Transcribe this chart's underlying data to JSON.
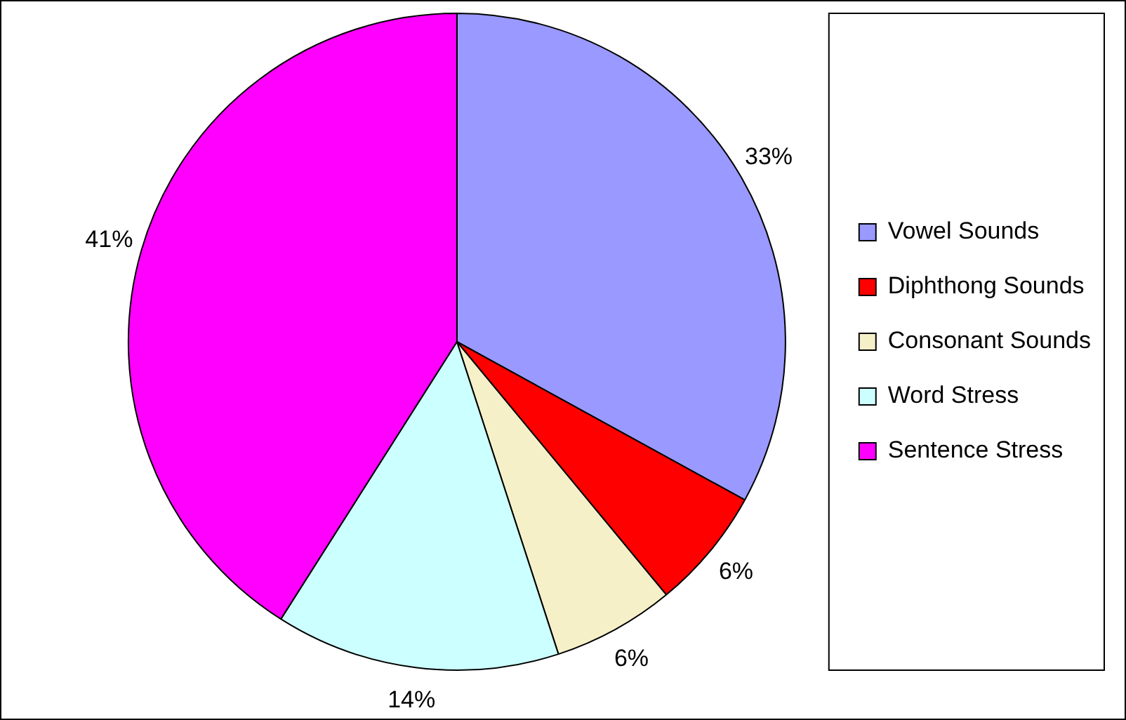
{
  "chart_data": {
    "type": "pie",
    "categories": [
      "Vowel Sounds",
      "Diphthong Sounds",
      "Consonant Sounds",
      "Word Stress",
      "Sentence Stress"
    ],
    "values": [
      33,
      6,
      6,
      14,
      41
    ],
    "value_labels": [
      "33%",
      "6%",
      "6%",
      "14%",
      "41%"
    ],
    "colors": [
      "#9999ff",
      "#ff0000",
      "#f5f0c8",
      "#ccffff",
      "#ff00ff"
    ],
    "legend": "right"
  }
}
